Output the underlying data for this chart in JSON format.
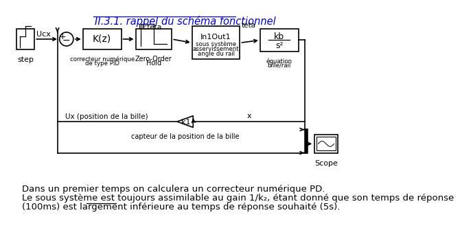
{
  "title": "II.3.1. rappel du schéma fonctionnel",
  "title_color": "#0000CC",
  "bg_color": "#FFFFFF",
  "text_color": "#000000",
  "paragraph_line1": "Dans un premier temps on calculera un correcteur numérique PD.",
  "paragraph_line2": "Le sous système est toujours assimilable au gain 1/k₂, étant donné que son temps de réponse",
  "paragraph_line3": "(100ms) est largement inférieure au temps de réponse souhaité (5s).",
  "underline_prefix": "(100ms) est largement ",
  "underline_word": "inférieure"
}
